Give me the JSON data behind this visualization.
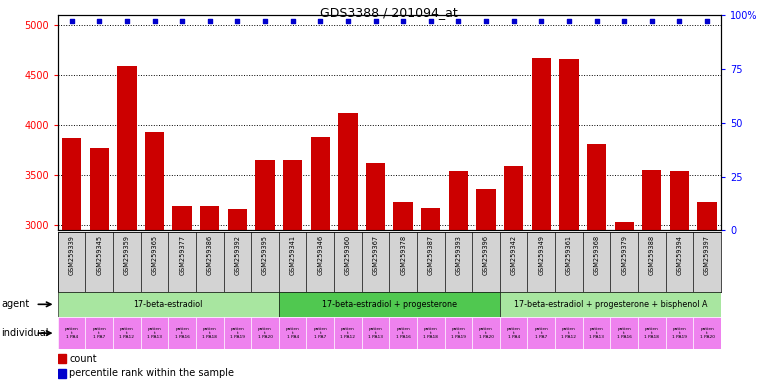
{
  "title": "GDS3388 / 201094_at",
  "gsm_labels": [
    "GSM259339",
    "GSM259345",
    "GSM259359",
    "GSM259365",
    "GSM259377",
    "GSM259386",
    "GSM259392",
    "GSM259395",
    "GSM259341",
    "GSM259346",
    "GSM259360",
    "GSM259367",
    "GSM259378",
    "GSM259387",
    "GSM259393",
    "GSM259396",
    "GSM259342",
    "GSM259349",
    "GSM259361",
    "GSM259368",
    "GSM259379",
    "GSM259388",
    "GSM259394",
    "GSM259397"
  ],
  "counts": [
    3870,
    3770,
    4590,
    3930,
    3190,
    3190,
    3160,
    3650,
    3650,
    3880,
    4120,
    3620,
    3230,
    3170,
    3540,
    3360,
    3590,
    4670,
    4660,
    3810,
    3030,
    3550,
    3540,
    3230
  ],
  "agent_groups": [
    {
      "label": "17-beta-estradiol",
      "start": 0,
      "end": 8,
      "color": "#a8e6a0"
    },
    {
      "label": "17-beta-estradiol + progesterone",
      "start": 8,
      "end": 16,
      "color": "#50c850"
    },
    {
      "label": "17-beta-estradiol + progesterone + bisphenol A",
      "start": 16,
      "end": 24,
      "color": "#a8e6a0"
    }
  ],
  "indiv_short": [
    "patien\nt\n1 PA4",
    "patien\nt\n1 PA7",
    "patien\nt\n1 PA12",
    "patien\nt\n1 PA13",
    "patien\nt\n1 PA16",
    "patien\nt\n1 PA18",
    "patien\nt\n1 PA19",
    "patien\nt\n1 PA20",
    "patien\nt\n1 PA4",
    "patien\nt\n1 PA7",
    "patien\nt\n1 PA12",
    "patien\nt\n1 PA13",
    "patien\nt\n1 PA16",
    "patien\nt\n1 PA18",
    "patien\nt\n1 PA19",
    "patien\nt\n1 PA20",
    "patien\nt\n1 PA4",
    "patien\nt\n1 PA7",
    "patien\nt\n1 PA12",
    "patien\nt\n1 PA13",
    "patien\nt\n1 PA16",
    "patien\nt\n1 PA18",
    "patien\nt\n1 PA19",
    "patien\nt\n1 PA20"
  ],
  "bar_color": "#cc0000",
  "dot_color": "#0000cc",
  "ylim_left": [
    2950,
    5100
  ],
  "ylim_right": [
    0,
    100
  ],
  "yticks_left": [
    3000,
    3500,
    4000,
    4500,
    5000
  ],
  "yticks_right": [
    0,
    25,
    50,
    75,
    100
  ],
  "ytick_right_labels": [
    "0",
    "25",
    "50",
    "75",
    "100%"
  ],
  "xlim": [
    -0.5,
    23.5
  ],
  "background_color": "#ffffff",
  "gsm_bg": "#d3d3d3",
  "pink_color": "#ee82ee",
  "title_fontsize": 9,
  "bar_width": 0.7
}
